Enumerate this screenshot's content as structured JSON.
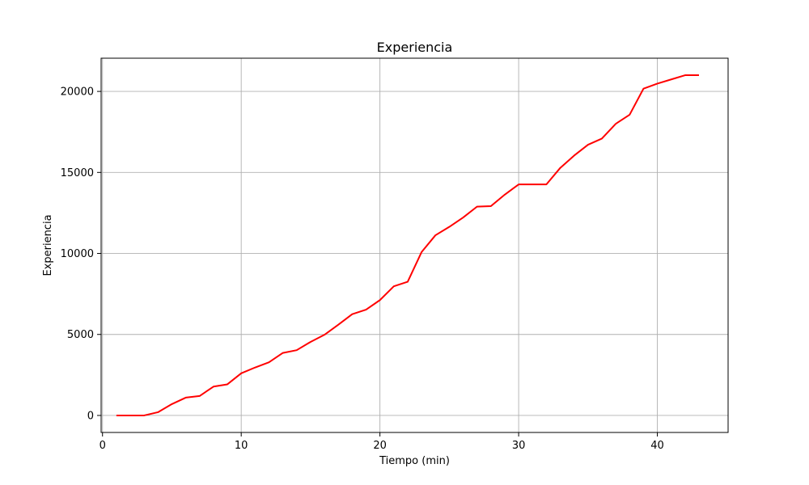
{
  "chart_data": {
    "type": "line",
    "title": "Experiencia",
    "xlabel": "Tiempo (min)",
    "ylabel": "Experiencia",
    "xlim": [
      -0.1,
      45.1
    ],
    "ylim": [
      -1050,
      22050
    ],
    "xticks": [
      0,
      10,
      20,
      30,
      40
    ],
    "yticks": [
      0,
      5000,
      10000,
      15000,
      20000
    ],
    "xtick_labels": [
      "0",
      "10",
      "20",
      "30",
      "40"
    ],
    "ytick_labels": [
      "0",
      "5000",
      "10000",
      "15000",
      "20000"
    ],
    "grid": true,
    "series": [
      {
        "color": "#ff0000",
        "x": [
          1,
          2,
          3,
          4,
          5,
          6,
          7,
          8,
          9,
          10,
          11,
          12,
          13,
          14,
          15,
          16,
          17,
          18,
          19,
          20,
          21,
          22,
          23,
          24,
          25,
          26,
          27,
          28,
          29,
          30,
          31,
          32,
          33,
          34,
          35,
          36,
          37,
          38,
          39,
          40,
          41,
          42,
          43
        ],
        "y": [
          0,
          0,
          0,
          200,
          700,
          1100,
          1200,
          1780,
          1920,
          2600,
          2960,
          3280,
          3860,
          4030,
          4540,
          4980,
          5600,
          6250,
          6530,
          7120,
          7970,
          8250,
          10080,
          11120,
          11640,
          12220,
          12890,
          12920,
          13630,
          14260,
          14260,
          14260,
          15280,
          16040,
          16710,
          17090,
          18000,
          18560,
          20170,
          20480,
          20740,
          21000,
          21000
        ]
      }
    ]
  }
}
